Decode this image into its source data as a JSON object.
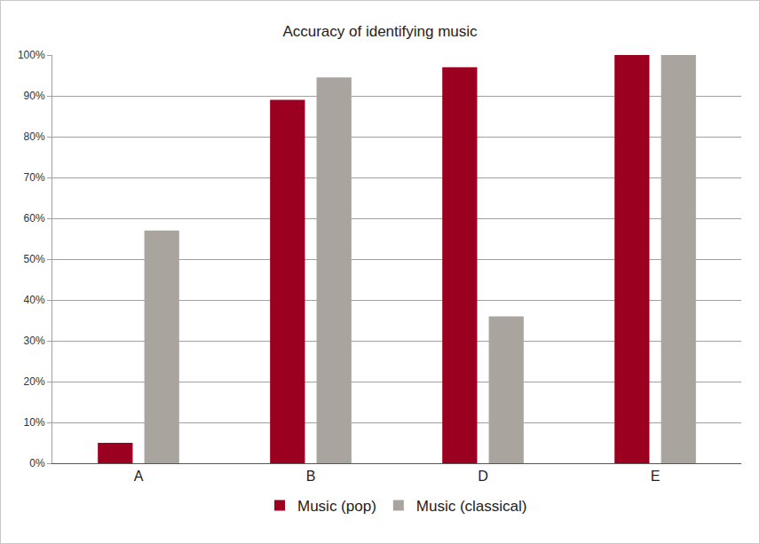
{
  "chart_data": {
    "type": "bar",
    "title": "Accuracy of identifying music",
    "categories": [
      "A",
      "B",
      "D",
      "E"
    ],
    "series": [
      {
        "name": "Music (pop)",
        "color": "#9b0020",
        "values": [
          5,
          89,
          97,
          100
        ]
      },
      {
        "name": "Music (classical)",
        "color": "#aaa49f",
        "values": [
          57,
          94.5,
          36,
          100
        ]
      }
    ],
    "ylim": [
      0,
      100
    ],
    "yticks": [
      {
        "value": 0,
        "label": "0%"
      },
      {
        "value": 10,
        "label": "10%"
      },
      {
        "value": 20,
        "label": "20%"
      },
      {
        "value": 30,
        "label": "30%"
      },
      {
        "value": 40,
        "label": "40%"
      },
      {
        "value": 50,
        "label": "50%"
      },
      {
        "value": 60,
        "label": "60%"
      },
      {
        "value": 70,
        "label": "70%"
      },
      {
        "value": 80,
        "label": "80%"
      },
      {
        "value": 90,
        "label": "90%"
      },
      {
        "value": 100,
        "label": "100%"
      }
    ],
    "grid": true,
    "legend": "bottom"
  }
}
